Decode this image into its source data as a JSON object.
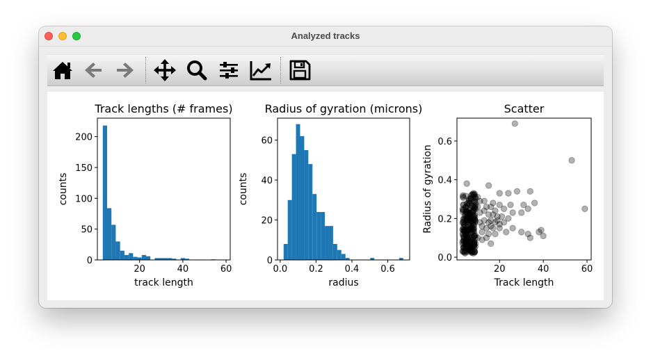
{
  "window": {
    "title": "Analyzed tracks"
  },
  "toolbar": {
    "buttons": [
      {
        "name": "home",
        "icon": "home-icon",
        "enabled": true
      },
      {
        "name": "back",
        "icon": "arrow-left-icon",
        "enabled": false
      },
      {
        "name": "forward",
        "icon": "arrow-right-icon",
        "enabled": false
      },
      {
        "name": "pan",
        "icon": "move-icon",
        "enabled": true
      },
      {
        "name": "zoom",
        "icon": "magnifier-icon",
        "enabled": true
      },
      {
        "name": "configure-subplots",
        "icon": "sliders-icon",
        "enabled": true
      },
      {
        "name": "edit-axis",
        "icon": "line-chart-icon",
        "enabled": true
      },
      {
        "name": "save",
        "icon": "floppy-disk-icon",
        "enabled": true
      }
    ]
  },
  "chart_data": [
    {
      "type": "bar",
      "title": "Track lengths (# frames)",
      "xlabel": "track length",
      "ylabel": "counts",
      "xlim": [
        0.5,
        61.9
      ],
      "ylim": [
        0,
        230
      ],
      "xticks": [
        20,
        40,
        60
      ],
      "yticks": [
        0,
        50,
        100,
        150,
        200
      ],
      "color": "#1f77b4",
      "bin_edges": [
        3.0,
        5.0,
        7.0,
        9.0,
        11.0,
        13.0,
        15.0,
        17.0,
        19.0,
        21.0,
        23.0,
        25.0,
        27.0,
        29.0,
        31.0,
        33.0,
        35.0,
        37.0,
        39.0,
        41.0,
        43.0,
        45.0,
        47.0,
        49.0,
        51.0,
        53.0,
        55.0,
        57.0,
        59.0
      ],
      "values": [
        218,
        84,
        57,
        30,
        15,
        8,
        11,
        5,
        4,
        8,
        6,
        0,
        3,
        3,
        3,
        3,
        2,
        0,
        3,
        2,
        0,
        0,
        0,
        0,
        0,
        1,
        0,
        0
      ]
    },
    {
      "type": "bar",
      "title": "Radius of gyration (microns)",
      "xlabel": "radius",
      "ylabel": "counts",
      "xlim": [
        -0.015,
        0.722
      ],
      "ylim": [
        0,
        71
      ],
      "xticks": [
        0.0,
        0.2,
        0.4,
        0.6
      ],
      "yticks": [
        0,
        20,
        40,
        60
      ],
      "color": "#1f77b4",
      "bin_edges": [
        0.019,
        0.042,
        0.065,
        0.088,
        0.111,
        0.134,
        0.157,
        0.18,
        0.203,
        0.226,
        0.249,
        0.272,
        0.295,
        0.318,
        0.341,
        0.364,
        0.387,
        0.41,
        0.433,
        0.456,
        0.479,
        0.502,
        0.525,
        0.548,
        0.571,
        0.594,
        0.617,
        0.64,
        0.663,
        0.686
      ],
      "values": [
        8,
        30,
        53,
        68,
        62,
        55,
        48,
        33,
        24,
        24,
        17,
        17,
        8,
        5,
        3,
        1,
        0,
        0,
        0,
        0,
        0,
        1,
        0,
        0,
        0,
        0,
        0,
        0,
        1
      ]
    },
    {
      "type": "scatter",
      "title": "Scatter",
      "xlabel": "Track length",
      "ylabel": "Radius of gyration",
      "xlim": [
        0.5,
        61.9
      ],
      "ylim": [
        -0.014,
        0.718
      ],
      "xticks": [
        20,
        40,
        60
      ],
      "yticks": [
        0.0,
        0.2,
        0.4,
        0.6
      ],
      "marker_color": "#000000",
      "marker_alpha": 0.3,
      "points": [
        [
          27,
          0.69
        ],
        [
          53,
          0.5
        ],
        [
          59,
          0.25
        ],
        [
          5,
          0.38
        ],
        [
          8,
          0.33
        ],
        [
          10,
          0.31
        ],
        [
          13,
          0.29
        ],
        [
          15,
          0.37
        ],
        [
          20,
          0.33
        ],
        [
          24,
          0.33
        ],
        [
          28,
          0.34
        ],
        [
          34,
          0.34
        ],
        [
          36,
          0.28
        ],
        [
          31,
          0.27
        ],
        [
          25,
          0.27
        ],
        [
          20,
          0.27
        ],
        [
          17,
          0.28
        ],
        [
          22,
          0.25
        ],
        [
          26,
          0.23
        ],
        [
          30,
          0.23
        ],
        [
          33,
          0.25
        ],
        [
          38,
          0.13
        ],
        [
          40,
          0.11
        ],
        [
          39,
          0.14
        ],
        [
          33,
          0.12
        ],
        [
          34,
          0.1
        ],
        [
          30,
          0.13
        ],
        [
          26,
          0.15
        ],
        [
          23,
          0.13
        ],
        [
          20,
          0.17
        ],
        [
          18,
          0.18
        ],
        [
          16,
          0.07
        ],
        [
          14,
          0.1
        ],
        [
          12,
          0.16
        ],
        [
          11,
          0.23
        ],
        [
          9,
          0.25
        ],
        [
          15,
          0.22
        ],
        [
          19,
          0.21
        ],
        [
          21,
          0.21
        ],
        [
          17,
          0.15
        ],
        [
          22,
          0.18
        ],
        [
          13,
          0.19
        ],
        [
          24,
          0.2
        ],
        [
          16,
          0.26
        ],
        [
          12,
          0.13
        ],
        [
          10,
          0.1
        ],
        [
          18,
          0.12
        ],
        [
          9,
          0.27
        ],
        [
          7,
          0.3
        ],
        [
          6,
          0.28
        ],
        [
          8,
          0.2
        ],
        [
          11,
          0.18
        ],
        [
          14,
          0.15
        ],
        [
          15,
          0.12
        ],
        [
          17,
          0.22
        ],
        [
          19,
          0.19
        ],
        [
          12,
          0.09
        ],
        [
          9,
          0.07
        ],
        [
          16,
          0.16
        ],
        [
          20,
          0.15
        ],
        [
          10,
          0.26
        ],
        [
          13,
          0.24
        ],
        [
          11,
          0.29
        ],
        [
          8,
          0.27
        ],
        [
          7,
          0.32
        ],
        [
          6,
          0.3
        ],
        [
          14,
          0.26
        ],
        [
          16,
          0.19
        ],
        [
          18,
          0.24
        ],
        [
          15,
          0.18
        ]
      ],
      "dense_cluster": {
        "x_range": [
          3,
          9
        ],
        "y_range": [
          0.02,
          0.33
        ],
        "count": 230
      }
    }
  ]
}
